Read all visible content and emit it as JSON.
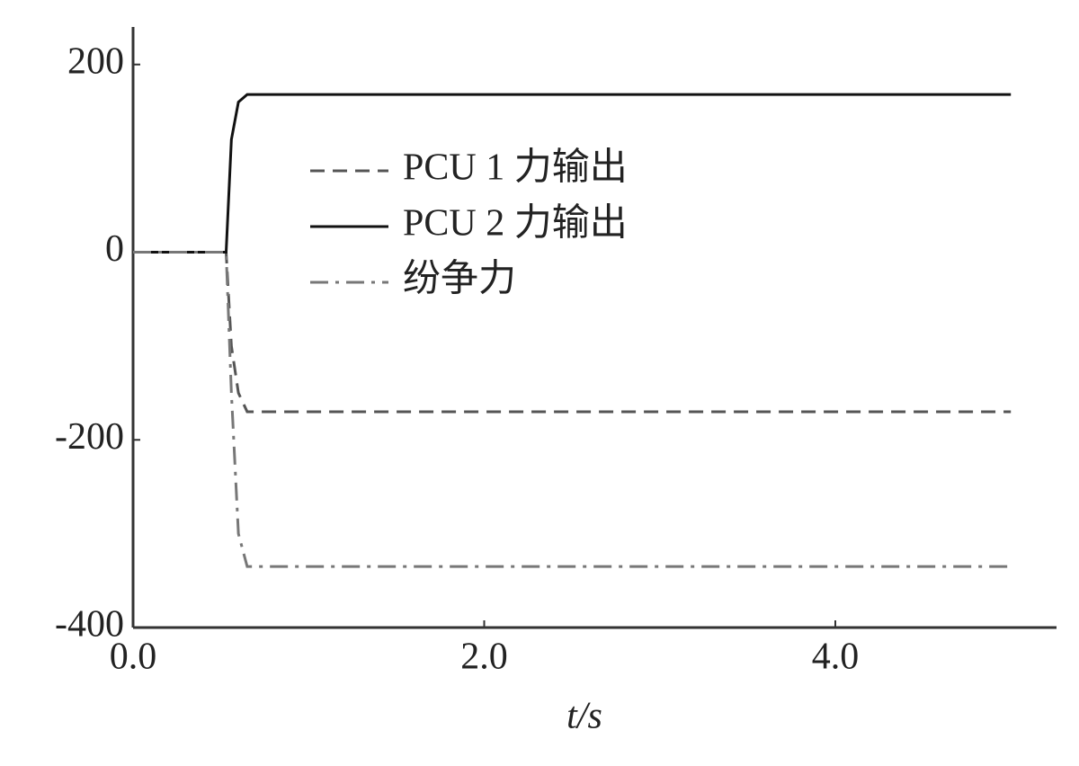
{
  "chart_data": {
    "type": "line",
    "x_label": "t/s",
    "x": [
      0,
      0.53,
      0.56,
      0.6,
      0.65,
      5.0
    ],
    "series": [
      {
        "name": "PCU 1 力输出",
        "color": "#555555",
        "dash": "dashed",
        "values": [
          0,
          0,
          -100,
          -150,
          -170,
          -170
        ]
      },
      {
        "name": "PCU 2 力输出",
        "color": "#111111",
        "dash": "solid",
        "values": [
          0,
          0,
          120,
          160,
          168,
          168
        ]
      },
      {
        "name": "纷争力",
        "color": "#777777",
        "dash": "dashdot",
        "values": [
          0,
          0,
          -150,
          -300,
          -335,
          -335
        ]
      }
    ],
    "xlim": [
      0,
      5.26
    ],
    "ylim": [
      -400,
      240
    ],
    "xticks": [
      {
        "value": 0,
        "label": "0.0"
      },
      {
        "value": 2,
        "label": "2.0"
      },
      {
        "value": 4,
        "label": "4.0"
      }
    ],
    "yticks": [
      200,
      0,
      -200,
      -400
    ],
    "grid": false
  }
}
